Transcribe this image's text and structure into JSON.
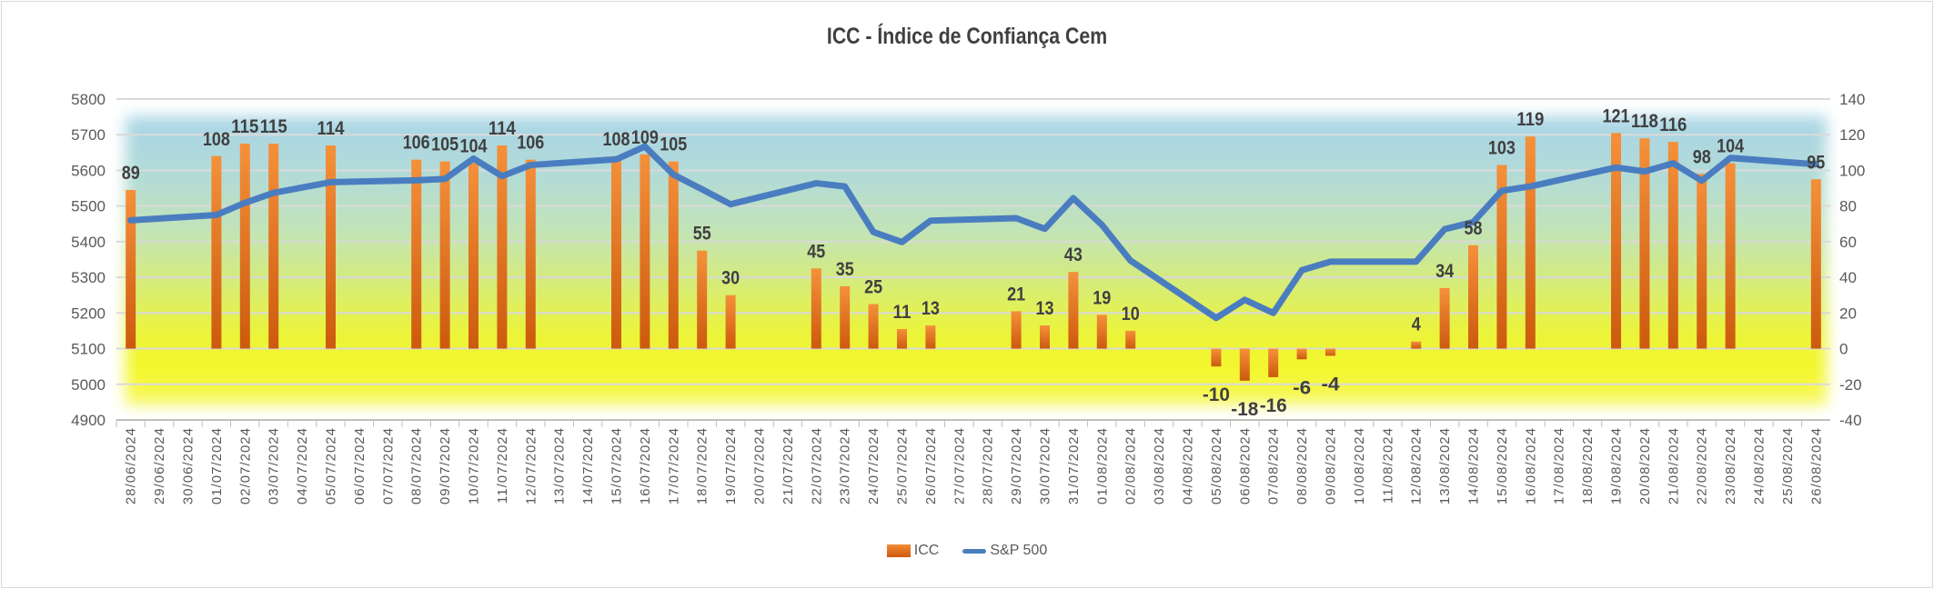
{
  "chart_data": {
    "type": "bar+line",
    "title": "ICC - Índice de Confiança Cem",
    "categories": [
      "28/06/2024",
      "29/06/2024",
      "30/06/2024",
      "01/07/2024",
      "02/07/2024",
      "03/07/2024",
      "04/07/2024",
      "05/07/2024",
      "06/07/2024",
      "07/07/2024",
      "08/07/2024",
      "09/07/2024",
      "10/07/2024",
      "11/07/2024",
      "12/07/2024",
      "13/07/2024",
      "14/07/2024",
      "15/07/2024",
      "16/07/2024",
      "17/07/2024",
      "18/07/2024",
      "19/07/2024",
      "20/07/2024",
      "21/07/2024",
      "22/07/2024",
      "23/07/2024",
      "24/07/2024",
      "25/07/2024",
      "26/07/2024",
      "27/07/2024",
      "28/07/2024",
      "29/07/2024",
      "30/07/2024",
      "31/07/2024",
      "01/08/2024",
      "02/08/2024",
      "03/08/2024",
      "04/08/2024",
      "05/08/2024",
      "06/08/2024",
      "07/08/2024",
      "08/08/2024",
      "09/08/2024",
      "10/08/2024",
      "11/08/2024",
      "12/08/2024",
      "13/08/2024",
      "14/08/2024",
      "15/08/2024",
      "16/08/2024",
      "17/08/2024",
      "18/08/2024",
      "19/08/2024",
      "20/08/2024",
      "21/08/2024",
      "22/08/2024",
      "23/08/2024",
      "24/08/2024",
      "25/08/2024",
      "26/08/2024"
    ],
    "series": [
      {
        "name": "ICC",
        "type": "bar",
        "axis": "right",
        "color": "#ed7d31",
        "values": [
          89,
          null,
          null,
          108,
          115,
          115,
          null,
          114,
          null,
          null,
          106,
          105,
          104,
          114,
          106,
          null,
          null,
          108,
          109,
          105,
          55,
          30,
          null,
          null,
          45,
          35,
          25,
          11,
          13,
          null,
          null,
          21,
          13,
          43,
          19,
          10,
          null,
          null,
          -10,
          -18,
          -16,
          -6,
          -4,
          null,
          null,
          4,
          34,
          58,
          103,
          119,
          null,
          null,
          121,
          118,
          116,
          98,
          104,
          null,
          null,
          95
        ]
      },
      {
        "name": "S&P 500",
        "type": "line",
        "axis": "left",
        "color": "#4a7dc0",
        "values": [
          5460,
          null,
          null,
          5475,
          5509,
          5537,
          null,
          5567,
          null,
          null,
          5572,
          5576,
          5633,
          5584,
          5615,
          null,
          null,
          5631,
          5667,
          5588,
          5547,
          5505,
          null,
          null,
          5564,
          5555,
          5427,
          5399,
          5459,
          null,
          null,
          5466,
          5436,
          5522,
          5447,
          5347,
          null,
          null,
          5186,
          5237,
          5200,
          5320,
          5344,
          null,
          null,
          5344,
          5435,
          5455,
          5543,
          5555,
          null,
          null,
          5608,
          5597,
          5620,
          5571,
          5635,
          null,
          null,
          5617
        ]
      }
    ],
    "y_left": {
      "min": 4900,
      "max": 5800,
      "step": 100,
      "ticks": [
        "4900",
        "5000",
        "5100",
        "5200",
        "5300",
        "5400",
        "5500",
        "5600",
        "5700",
        "5800"
      ]
    },
    "y_right": {
      "min": -40,
      "max": 140,
      "step": 20,
      "ticks": [
        "-40",
        "-20",
        "0",
        "20",
        "40",
        "60",
        "80",
        "100",
        "120",
        "140"
      ]
    },
    "grid": true,
    "legend": {
      "position": "bottom",
      "items": [
        "ICC",
        "S&P 500"
      ]
    }
  }
}
